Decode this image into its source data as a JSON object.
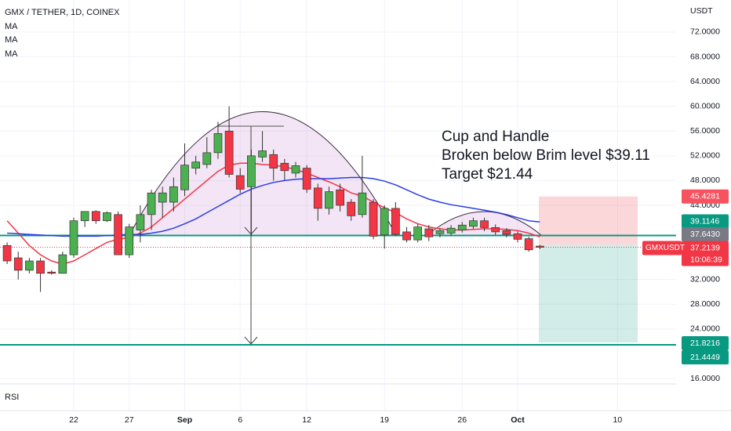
{
  "header": {
    "title": "GMX / TETHER, 1D, COINEX",
    "indicators": [
      "MA",
      "MA",
      "MA"
    ]
  },
  "chart_data": {
    "type": "candlestick",
    "categories": [
      null,
      null,
      null,
      null,
      null,
      null,
      "22",
      null,
      null,
      null,
      null,
      "27",
      null,
      null,
      null,
      null,
      "Sep",
      null,
      null,
      null,
      null,
      "6",
      null,
      null,
      null,
      null,
      null,
      "12",
      null,
      null,
      null,
      null,
      null,
      null,
      "19",
      null,
      null,
      null,
      null,
      null,
      null,
      "26",
      null,
      null,
      null,
      null,
      "Oct",
      null,
      null,
      null,
      null,
      null,
      null,
      null,
      null,
      "10"
    ],
    "open": [
      37.5,
      35.5,
      33.5,
      35,
      33.2,
      33,
      36,
      41.5,
      43,
      41.5,
      42.5,
      36,
      40,
      42.5,
      44.5,
      44.5,
      46.5,
      50,
      50.6,
      52.5,
      56,
      48.8,
      47,
      51.8,
      52.2,
      50.8,
      49.2,
      50,
      46.8,
      43.5,
      46.5,
      44.5,
      42.5,
      44.5,
      39.2,
      43.5,
      39.7,
      38.4,
      40.2,
      39.4,
      39.5,
      40,
      40.6,
      41.5,
      40.4,
      39.9,
      39.4,
      38.6,
      37.4,
      null,
      null,
      null,
      null,
      null,
      null,
      null
    ],
    "high": [
      38,
      36.5,
      35.5,
      35.5,
      33.5,
      36.5,
      42,
      43,
      43.2,
      43,
      43,
      41,
      44,
      46.5,
      47,
      48.5,
      54,
      52,
      55,
      57.5,
      60,
      50,
      53,
      56,
      53,
      51.5,
      51,
      50.5,
      47.5,
      47,
      47.5,
      45,
      52,
      45,
      44,
      44.5,
      40.5,
      41,
      40.8,
      40.3,
      40.8,
      41.3,
      42,
      42,
      40.9,
      40.3,
      39.8,
      38.9,
      37.6,
      null,
      null,
      null,
      null,
      null,
      null,
      null
    ],
    "low": [
      34.5,
      32,
      33,
      30,
      32.8,
      33,
      35.5,
      40.5,
      41,
      41.3,
      36,
      35.5,
      38,
      40,
      42,
      43,
      45.5,
      49,
      50,
      51.5,
      48.5,
      46,
      39,
      51,
      48,
      48,
      48.5,
      46,
      41.5,
      42.5,
      43,
      41.5,
      42,
      38.5,
      37,
      39,
      38,
      38,
      38.2,
      38.8,
      39.1,
      39.6,
      40.2,
      39.8,
      39.2,
      38.8,
      38,
      36.5,
      36.9,
      null,
      null,
      null,
      null,
      null,
      null,
      null
    ],
    "close": [
      35,
      33.5,
      35,
      33,
      33,
      36,
      41.5,
      43,
      41.5,
      42.8,
      36,
      40.5,
      42.5,
      46,
      46,
      47,
      50.5,
      51,
      52.5,
      55.6,
      49,
      46.6,
      52,
      52.8,
      50,
      49.6,
      50.4,
      46.6,
      43.5,
      46.2,
      44,
      42.3,
      46,
      39,
      43.5,
      39.3,
      38.4,
      40.5,
      38.9,
      39.9,
      40.3,
      40.8,
      41.5,
      40.4,
      39.7,
      39.3,
      38.5,
      36.8,
      37.2139,
      null,
      null,
      null,
      null,
      null,
      null,
      null
    ],
    "up_color": "#4caf50",
    "down_color": "#f23645",
    "series": [
      {
        "color": "#f23645",
        "values": [
          41.5,
          39.5,
          37.5,
          36,
          35,
          34.5,
          35,
          36,
          37,
          38,
          38.5,
          38.8,
          39.5,
          40.5,
          42,
          43.5,
          45,
          46.5,
          48,
          49.5,
          50.5,
          50.8,
          50.8,
          50.6,
          50.5,
          50.2,
          49.8,
          49.2,
          48.5,
          47.8,
          47,
          46,
          45.5,
          44.5,
          43.6,
          42.8,
          41.8,
          41,
          40.5,
          40.2,
          40,
          40,
          40.1,
          40.2,
          40.2,
          40.1,
          39.9,
          39.5,
          38.9,
          null,
          null,
          null,
          null,
          null,
          null,
          null
        ]
      },
      {
        "color": "#2a3ee6",
        "values": [
          39.5,
          39.4,
          39.3,
          39.2,
          39.1,
          39,
          39,
          39,
          39,
          39.1,
          39.2,
          39.3,
          39.3,
          39.5,
          39.8,
          40.3,
          41,
          41.8,
          42.8,
          43.8,
          44.8,
          45.8,
          46.6,
          47.2,
          47.7,
          48,
          48.2,
          48.3,
          48.3,
          48.3,
          48.4,
          48.5,
          48.5,
          48.3,
          47.9,
          47.3,
          46.5,
          45.7,
          45,
          44.5,
          44.1,
          43.8,
          43.5,
          43.2,
          42.9,
          42.5,
          42,
          41.5,
          41.3,
          null,
          null,
          null,
          null,
          null,
          null,
          null
        ]
      }
    ],
    "ylim": [
      15.11,
      77.19
    ],
    "yticks": [
      {
        "value": 72,
        "label": "72.0000"
      },
      {
        "value": 68,
        "label": "68.0000"
      },
      {
        "value": 64,
        "label": "64.0000"
      },
      {
        "value": 60,
        "label": "60.0000"
      },
      {
        "value": 56,
        "label": "56.0000"
      },
      {
        "value": 52,
        "label": "52.0000"
      },
      {
        "value": 48,
        "label": "48.0000"
      },
      {
        "value": 44,
        "label": "44.0000"
      },
      {
        "value": 32,
        "label": "32.0000"
      },
      {
        "value": 28,
        "label": "28.0000"
      },
      {
        "value": 24,
        "label": "24.0000"
      },
      {
        "value": 16,
        "label": "16.0000"
      }
    ],
    "y_axis_label": "USDT",
    "levels": [
      {
        "value": 45.4281,
        "label": "45.4281",
        "color": "#f7525f"
      },
      {
        "value": 39.1146,
        "label": "39.1146",
        "color": "#089981"
      },
      {
        "value": 37.643,
        "label": "37.6430",
        "color": "#787b86"
      },
      {
        "value": 37.2139,
        "label": "37.2139",
        "color": "#f23645"
      },
      {
        "value": 21.8216,
        "label": "21.8216",
        "color": "#089981"
      },
      {
        "value": 21.4449,
        "label": "21.4449",
        "color": "#089981"
      }
    ],
    "symbol": "GMXUSDT",
    "countdown": "10:06:39",
    "annotation": [
      "Cup and Handle",
      "Broken below Brim level $39.11",
      "Target $21.44"
    ],
    "lower_pane": "RSI"
  }
}
